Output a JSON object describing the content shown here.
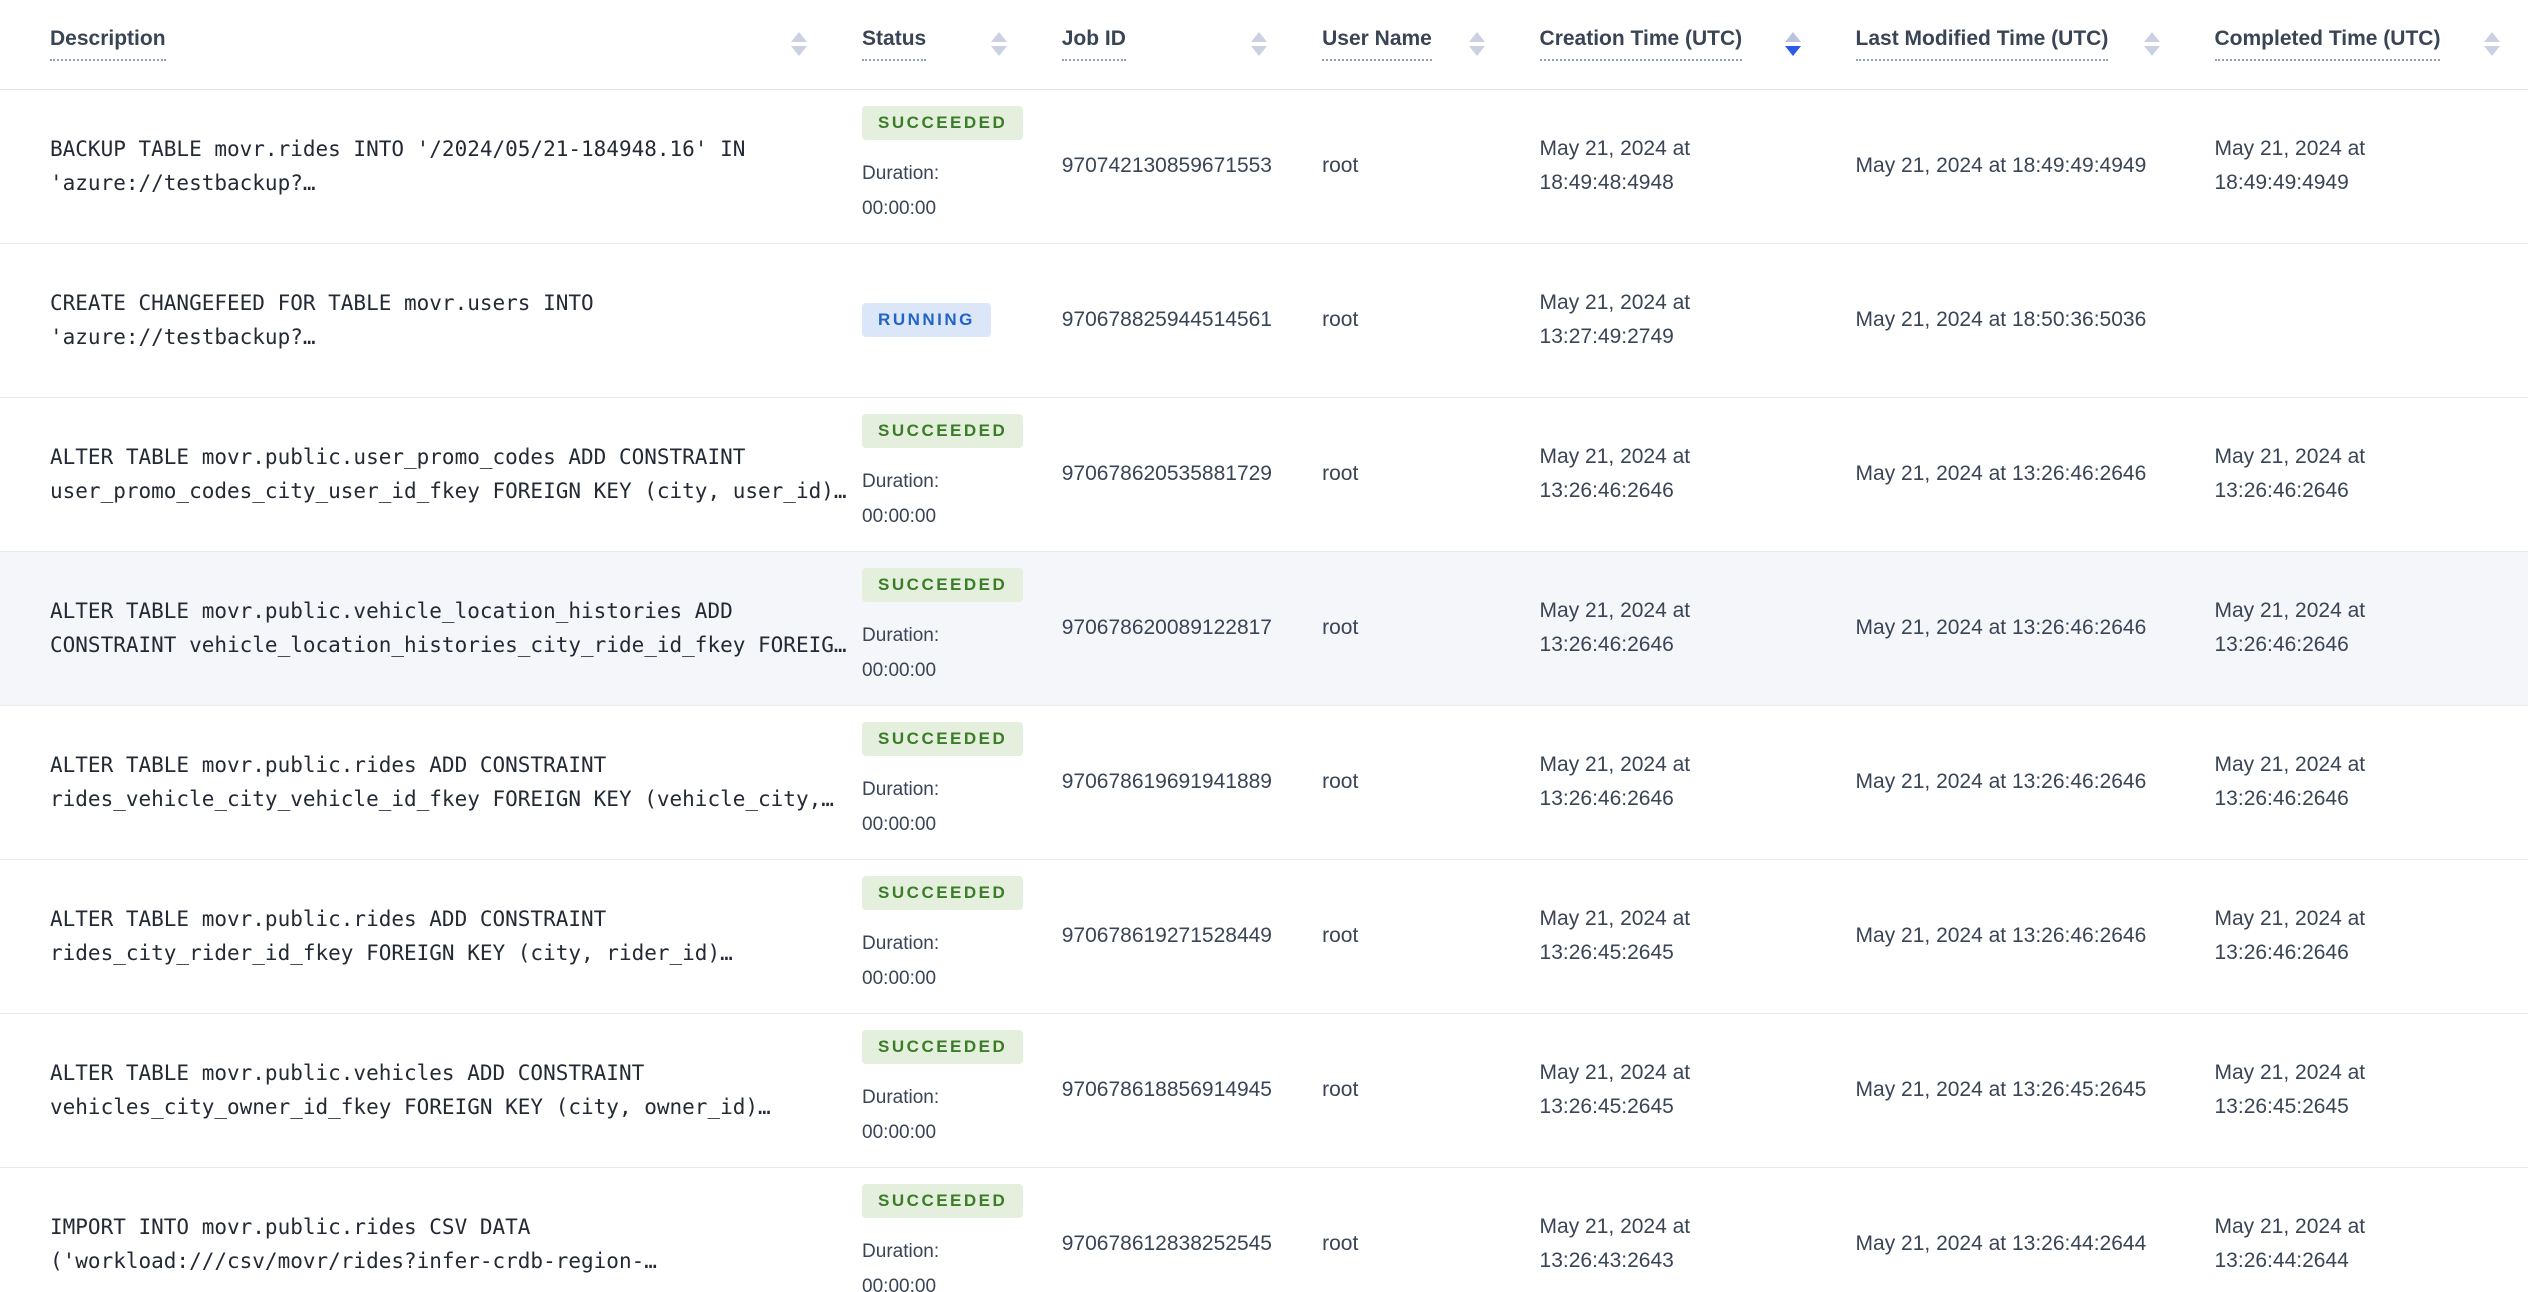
{
  "accent": {
    "sort_active_blue": "#2a5ce6",
    "row_highlight_bg": "#f4f6fa",
    "row_border": "#e7ecf3",
    "header_text": "#394455"
  },
  "status_styles": {
    "SUCCEEDED": {
      "bg": "#e4f0dd",
      "text": "#3a7c27"
    },
    "RUNNING": {
      "bg": "#dbe7f9",
      "text": "#2264c6"
    }
  },
  "table": {
    "duration_label": "Duration:",
    "columns": [
      {
        "key": "description",
        "label": "Description",
        "sort": "none"
      },
      {
        "key": "status",
        "label": "Status",
        "sort": "none"
      },
      {
        "key": "job_id",
        "label": "Job ID",
        "sort": "none"
      },
      {
        "key": "user_name",
        "label": "User Name",
        "sort": "none"
      },
      {
        "key": "creation_time",
        "label": "Creation Time (UTC)",
        "sort": "desc"
      },
      {
        "key": "last_modified_time",
        "label": "Last Modified Time (UTC)",
        "sort": "none"
      },
      {
        "key": "completed_time",
        "label": "Completed Time (UTC)",
        "sort": "none"
      }
    ],
    "rows": [
      {
        "description": "BACKUP TABLE movr.rides INTO '/2024/05/21-184948.16' IN 'azure://testbackup?…",
        "status": "SUCCEEDED",
        "duration": "00:00:00",
        "job_id": "970742130859671553",
        "user_name": "root",
        "creation_time": "May 21, 2024 at 18:49:48:4948",
        "last_modified_time": "May 21, 2024 at 18:49:49:4949",
        "completed_time": "May 21, 2024 at 18:49:49:4949",
        "highlighted": false
      },
      {
        "description": "CREATE CHANGEFEED FOR TABLE movr.users INTO 'azure://testbackup?…",
        "status": "RUNNING",
        "job_id": "970678825944514561",
        "user_name": "root",
        "creation_time": "May 21, 2024 at 13:27:49:2749",
        "last_modified_time": "May 21, 2024 at 18:50:36:5036",
        "completed_time": "",
        "highlighted": false
      },
      {
        "description": "ALTER TABLE movr.public.user_promo_codes ADD CONSTRAINT user_promo_codes_city_user_id_fkey FOREIGN KEY (city, user_id)…",
        "status": "SUCCEEDED",
        "duration": "00:00:00",
        "job_id": "970678620535881729",
        "user_name": "root",
        "creation_time": "May 21, 2024 at 13:26:46:2646",
        "last_modified_time": "May 21, 2024 at 13:26:46:2646",
        "completed_time": "May 21, 2024 at 13:26:46:2646",
        "highlighted": false
      },
      {
        "description": "ALTER TABLE movr.public.vehicle_location_histories ADD CONSTRAINT vehicle_location_histories_city_ride_id_fkey FOREIG…",
        "status": "SUCCEEDED",
        "duration": "00:00:00",
        "job_id": "970678620089122817",
        "user_name": "root",
        "creation_time": "May 21, 2024 at 13:26:46:2646",
        "last_modified_time": "May 21, 2024 at 13:26:46:2646",
        "completed_time": "May 21, 2024 at 13:26:46:2646",
        "highlighted": true
      },
      {
        "description": "ALTER TABLE movr.public.rides ADD CONSTRAINT rides_vehicle_city_vehicle_id_fkey FOREIGN KEY (vehicle_city,…",
        "status": "SUCCEEDED",
        "duration": "00:00:00",
        "job_id": "970678619691941889",
        "user_name": "root",
        "creation_time": "May 21, 2024 at 13:26:46:2646",
        "last_modified_time": "May 21, 2024 at 13:26:46:2646",
        "completed_time": "May 21, 2024 at 13:26:46:2646",
        "highlighted": false
      },
      {
        "description": "ALTER TABLE movr.public.rides ADD CONSTRAINT rides_city_rider_id_fkey FOREIGN KEY (city, rider_id)…",
        "status": "SUCCEEDED",
        "duration": "00:00:00",
        "job_id": "970678619271528449",
        "user_name": "root",
        "creation_time": "May 21, 2024 at 13:26:45:2645",
        "last_modified_time": "May 21, 2024 at 13:26:46:2646",
        "completed_time": "May 21, 2024 at 13:26:46:2646",
        "highlighted": false
      },
      {
        "description": "ALTER TABLE movr.public.vehicles ADD CONSTRAINT vehicles_city_owner_id_fkey FOREIGN KEY (city, owner_id)…",
        "status": "SUCCEEDED",
        "duration": "00:00:00",
        "job_id": "970678618856914945",
        "user_name": "root",
        "creation_time": "May 21, 2024 at 13:26:45:2645",
        "last_modified_time": "May 21, 2024 at 13:26:45:2645",
        "completed_time": "May 21, 2024 at 13:26:45:2645",
        "highlighted": false
      },
      {
        "description": "IMPORT INTO movr.public.rides CSV DATA ('workload:///csv/movr/rides?infer-crdb-region-…",
        "status": "SUCCEEDED",
        "duration": "00:00:00",
        "job_id": "970678612838252545",
        "user_name": "root",
        "creation_time": "May 21, 2024 at 13:26:43:2643",
        "last_modified_time": "May 21, 2024 at 13:26:44:2644",
        "completed_time": "May 21, 2024 at 13:26:44:2644",
        "highlighted": false
      }
    ]
  }
}
